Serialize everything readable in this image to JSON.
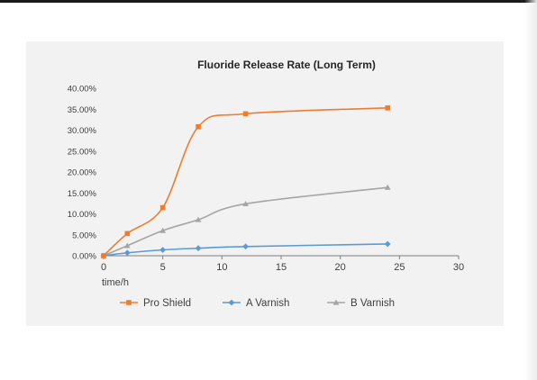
{
  "chart_data": {
    "type": "line",
    "title": "Fluoride Release Rate (Long Term)",
    "xlabel": "time/h",
    "ylabel": "",
    "xlim": [
      0,
      30
    ],
    "ylim": [
      0,
      40
    ],
    "x_ticks": [
      0,
      5,
      10,
      15,
      20,
      25,
      30
    ],
    "y_ticks": [
      "0.00%",
      "5.00%",
      "10.00%",
      "15.00%",
      "20.00%",
      "25.00%",
      "30.00%",
      "35.00%",
      "40.00%"
    ],
    "y_tick_values": [
      0,
      5,
      10,
      15,
      20,
      25,
      30,
      35,
      40
    ],
    "grid": false,
    "legend_position": "bottom",
    "series": [
      {
        "name": "Pro Shield",
        "color": "#ed7d31",
        "marker": "square",
        "x": [
          0,
          2,
          5,
          8,
          12,
          24
        ],
        "values": [
          0,
          5.3,
          11.5,
          30.8,
          33.9,
          35.3
        ]
      },
      {
        "name": "A Varnish",
        "color": "#5b9bd5",
        "marker": "diamond",
        "x": [
          0,
          2,
          5,
          8,
          12,
          24
        ],
        "values": [
          0,
          0.7,
          1.4,
          1.8,
          2.2,
          2.8
        ]
      },
      {
        "name": "B Varnish",
        "color": "#a5a5a5",
        "marker": "triangle",
        "x": [
          0,
          2,
          5,
          8,
          12,
          24
        ],
        "values": [
          0,
          2.4,
          6.0,
          8.6,
          12.4,
          16.3
        ]
      }
    ]
  }
}
